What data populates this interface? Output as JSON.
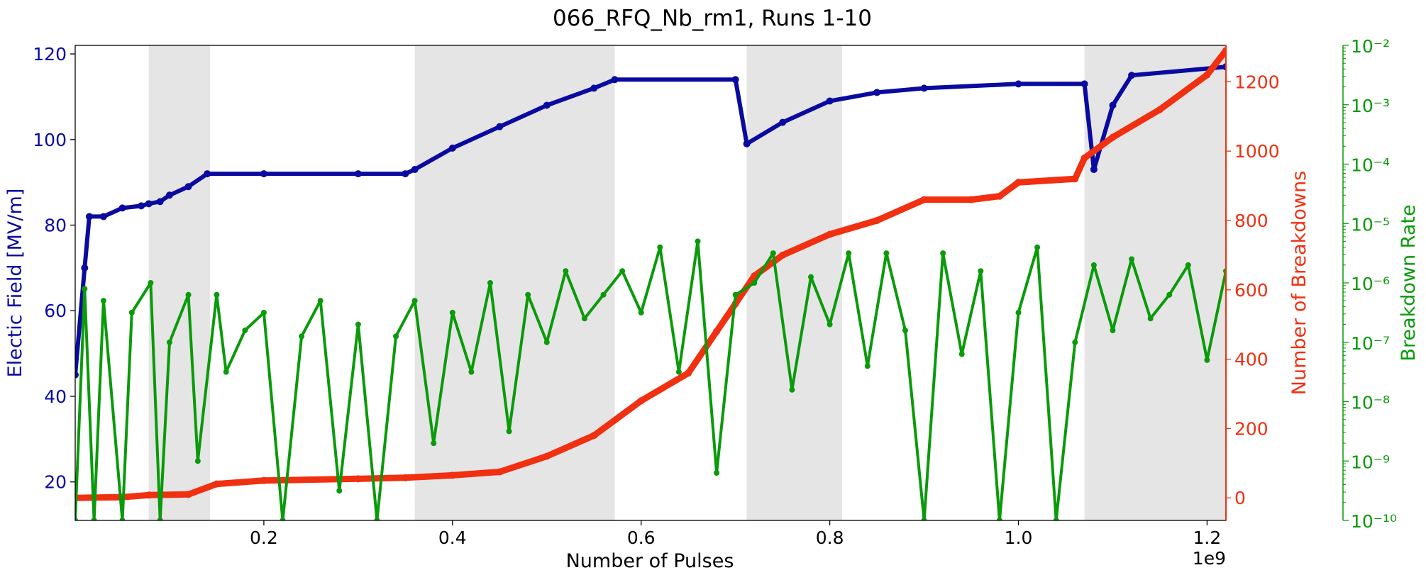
{
  "chart_data": {
    "type": "line",
    "title": "066_RFQ_Nb_rm1, Runs 1-10",
    "xlabel": "Number of Pulses",
    "x_offset_label": "1e9",
    "xlim": [
      0,
      1.22
    ],
    "x_ticks": [
      0.2,
      0.4,
      0.6,
      0.8,
      1.0,
      1.2
    ],
    "x_tick_labels": [
      "0.2",
      "0.4",
      "0.6",
      "0.8",
      "1.0",
      "1.2"
    ],
    "shaded_x_ranges": [
      [
        0.078,
        0.143
      ],
      [
        0.36,
        0.572
      ],
      [
        0.712,
        0.813
      ],
      [
        1.07,
        1.22
      ]
    ],
    "y_left": {
      "label": "Electic Field [MV/m]",
      "color": "#0a0aa0",
      "lim": [
        11,
        122
      ],
      "ticks": [
        20,
        40,
        60,
        80,
        100,
        120
      ],
      "tick_labels": [
        "20",
        "40",
        "60",
        "80",
        "100",
        "120"
      ]
    },
    "y_right": {
      "label": "Number of Breakdowns",
      "color": "#f03010",
      "lim": [
        -65,
        1305
      ],
      "ticks": [
        0,
        200,
        400,
        600,
        800,
        1000,
        1200
      ],
      "tick_labels": [
        "0",
        "200",
        "400",
        "600",
        "800",
        "1000",
        "1200"
      ]
    },
    "y_far_right": {
      "label": "Breakdown Rate",
      "color": "#0a9a0a",
      "scale": "log",
      "lim": [
        1e-10,
        0.01
      ],
      "ticks": [
        -10,
        -9,
        -8,
        -7,
        -6,
        -5,
        -4,
        -3,
        -2
      ],
      "tick_labels": [
        "10⁻¹⁰",
        "10⁻⁹",
        "10⁻⁸",
        "10⁻⁷",
        "10⁻⁶",
        "10⁻⁵",
        "10⁻⁴",
        "10⁻³",
        "10⁻²"
      ]
    },
    "series": [
      {
        "axis": "left",
        "color": "#0a0aa0",
        "x": [
          0.0,
          0.01,
          0.015,
          0.03,
          0.05,
          0.07,
          0.078,
          0.09,
          0.1,
          0.12,
          0.14,
          0.2,
          0.3,
          0.35,
          0.36,
          0.4,
          0.45,
          0.5,
          0.55,
          0.572,
          0.7,
          0.712,
          0.75,
          0.8,
          0.85,
          0.9,
          1.0,
          1.07,
          1.08,
          1.1,
          1.12,
          1.22
        ],
        "y": [
          45,
          70,
          82,
          82,
          84,
          84.5,
          85,
          85.5,
          87,
          89,
          92,
          92,
          92,
          92,
          93,
          98,
          103,
          108,
          112,
          114,
          114,
          99,
          104,
          109,
          111,
          112,
          113,
          113,
          93,
          108,
          115,
          117
        ]
      },
      {
        "axis": "right",
        "color": "#f03010",
        "x": [
          0.0,
          0.05,
          0.078,
          0.12,
          0.15,
          0.2,
          0.3,
          0.35,
          0.4,
          0.45,
          0.5,
          0.55,
          0.6,
          0.65,
          0.68,
          0.7,
          0.72,
          0.75,
          0.8,
          0.85,
          0.9,
          0.95,
          0.98,
          1.0,
          1.06,
          1.07,
          1.1,
          1.15,
          1.2,
          1.22
        ],
        "y": [
          0,
          2,
          8,
          10,
          40,
          50,
          55,
          58,
          65,
          75,
          120,
          180,
          280,
          360,
          480,
          560,
          640,
          700,
          760,
          800,
          860,
          860,
          870,
          910,
          920,
          980,
          1040,
          1120,
          1220,
          1290
        ]
      },
      {
        "axis": "far_right",
        "color": "#0a9a0a",
        "x": [
          0.0,
          0.01,
          0.02,
          0.03,
          0.05,
          0.06,
          0.08,
          0.09,
          0.1,
          0.12,
          0.13,
          0.15,
          0.16,
          0.18,
          0.2,
          0.22,
          0.24,
          0.26,
          0.28,
          0.3,
          0.32,
          0.34,
          0.36,
          0.38,
          0.4,
          0.42,
          0.44,
          0.46,
          0.48,
          0.5,
          0.52,
          0.54,
          0.56,
          0.58,
          0.6,
          0.62,
          0.64,
          0.66,
          0.68,
          0.7,
          0.72,
          0.74,
          0.76,
          0.78,
          0.8,
          0.82,
          0.84,
          0.86,
          0.88,
          0.9,
          0.92,
          0.94,
          0.96,
          0.98,
          1.0,
          1.02,
          1.04,
          1.06,
          1.08,
          1.1,
          1.12,
          1.14,
          1.16,
          1.18,
          1.2,
          1.22
        ],
        "y": [
          -10,
          -6.1,
          -10,
          -6.3,
          -10,
          -6.5,
          -6,
          -10,
          -7,
          -6.2,
          -9,
          -6.2,
          -7.5,
          -6.8,
          -6.5,
          -10,
          -6.9,
          -6.3,
          -9.5,
          -6.7,
          -10,
          -6.9,
          -6.3,
          -8.7,
          -6.5,
          -7.5,
          -6.0,
          -8.5,
          -6.2,
          -7.0,
          -5.8,
          -6.6,
          -6.2,
          -5.8,
          -6.5,
          -5.4,
          -7.5,
          -5.3,
          -9.2,
          -6.2,
          -6.0,
          -5.5,
          -7.8,
          -5.9,
          -6.7,
          -5.5,
          -7.4,
          -5.5,
          -6.8,
          -10,
          -5.5,
          -7.2,
          -5.8,
          -10,
          -6.5,
          -5.4,
          -10,
          -7.0,
          -5.7,
          -6.8,
          -5.6,
          -6.6,
          -6.2,
          -5.7,
          -7.3,
          -5.8
        ]
      }
    ]
  }
}
